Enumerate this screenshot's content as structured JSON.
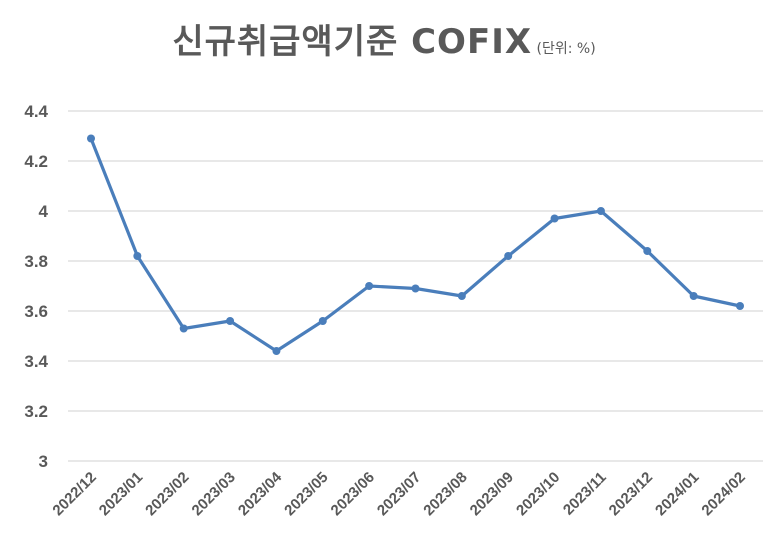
{
  "title": {
    "main": "신규취급액기준 COFIX",
    "unit": "(단위: %)"
  },
  "colors": {
    "line": "#4a7ebb",
    "grid": "#d9d9d9",
    "text": "#595959"
  },
  "chart_data": {
    "type": "line",
    "title": "신규취급액기준 COFIX (단위: %)",
    "xlabel": "",
    "ylabel": "",
    "categories": [
      "2022/12",
      "2023/01",
      "2023/02",
      "2023/03",
      "2023/04",
      "2023/05",
      "2023/06",
      "2023/07",
      "2023/08",
      "2023/09",
      "2023/10",
      "2023/11",
      "2023/12",
      "2024/01",
      "2024/02"
    ],
    "series": [
      {
        "name": "신규취급액기준 COFIX",
        "values": [
          4.29,
          3.82,
          3.53,
          3.56,
          3.44,
          3.56,
          3.7,
          3.69,
          3.66,
          3.82,
          3.97,
          4.0,
          3.84,
          3.66,
          3.62
        ]
      }
    ],
    "yticks": [
      "3",
      "3.2",
      "3.4",
      "3.6",
      "3.8",
      "4",
      "4.2",
      "4.4"
    ],
    "ylim": [
      3,
      4.4
    ],
    "grid": true,
    "legend": "none",
    "markers": true
  }
}
